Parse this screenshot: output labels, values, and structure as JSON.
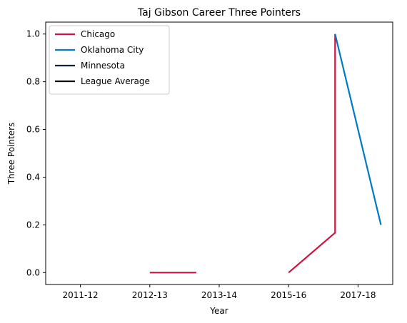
{
  "chart_data": {
    "type": "line",
    "title": "Taj Gibson Career Three Pointers",
    "xlabel": "Year",
    "ylabel": "Three Pointers",
    "ylim": [
      -0.05,
      1.05
    ],
    "x_ticks": [
      {
        "label": "2011-12",
        "pos": 0
      },
      {
        "label": "2012-13",
        "pos": 1
      },
      {
        "label": "2013-14",
        "pos": 2
      },
      {
        "label": "2015-16",
        "pos": 3
      },
      {
        "label": "2017-18",
        "pos": 4
      }
    ],
    "xlim": [
      -0.5,
      4.5
    ],
    "y_ticks": [
      0.0,
      0.2,
      0.4,
      0.6,
      0.8,
      1.0
    ],
    "legend_position": "upper-left",
    "series": [
      {
        "name": "Chicago",
        "color": "#ce1141",
        "points": [
          [
            1.0,
            0.0
          ],
          [
            1.67,
            0.0
          ],
          null,
          [
            3.0,
            0.0
          ],
          [
            3.67,
            0.167
          ],
          [
            3.67,
            1.0
          ]
        ]
      },
      {
        "name": "Oklahoma City",
        "color": "#007ac1",
        "points": [
          [
            3.67,
            1.0
          ],
          [
            4.33,
            0.2
          ]
        ]
      },
      {
        "name": "Minnesota",
        "color": "#0c2340",
        "points": []
      },
      {
        "name": "League Average",
        "color": "#000000",
        "points": []
      }
    ]
  }
}
